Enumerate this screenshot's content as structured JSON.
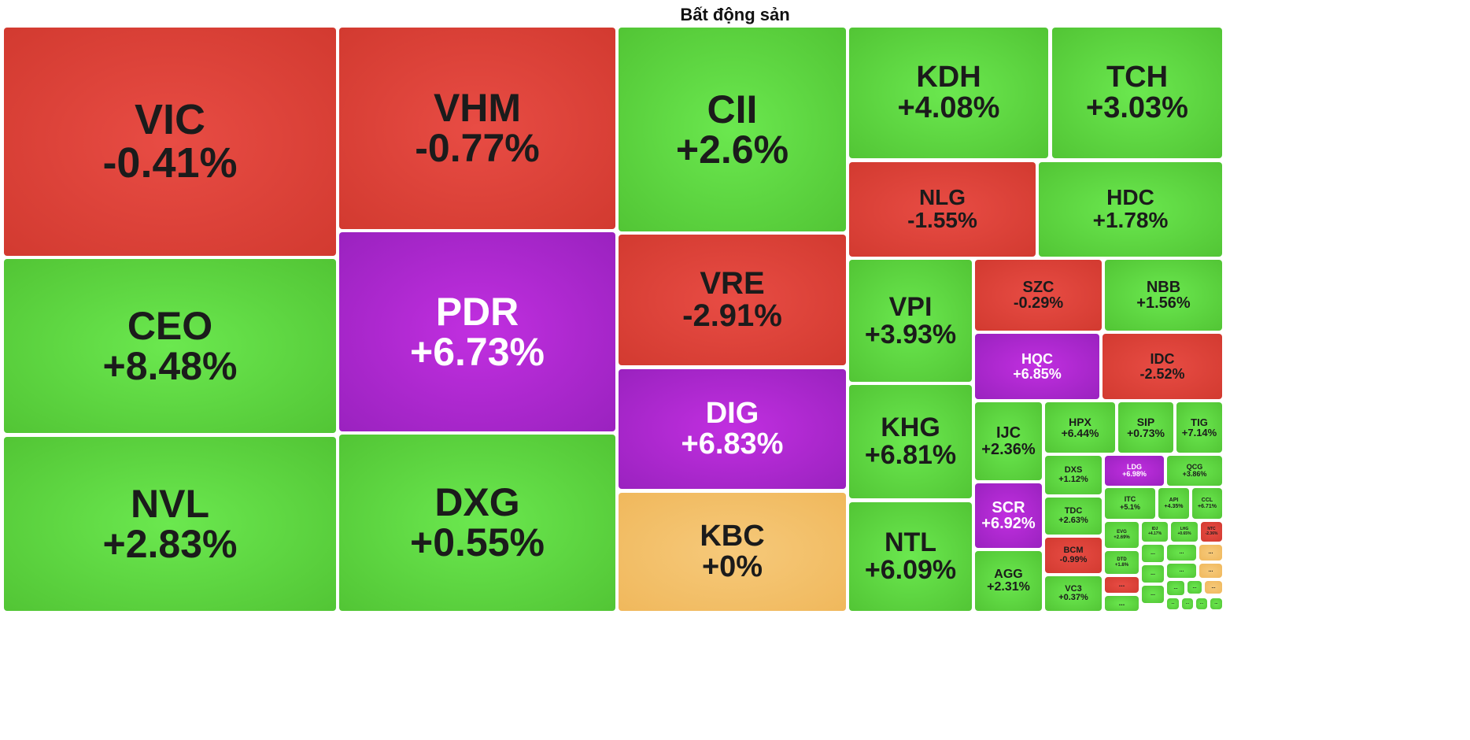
{
  "title": "Bất động sản",
  "colors": {
    "up": "#5bd13e",
    "down": "#de4239",
    "ceiling": "#ad28d0",
    "reference": "#f3c06a"
  },
  "chart_data": {
    "type": "treemap",
    "tiles": [
      {
        "ticker": "VIC",
        "change": "-0.41%",
        "status": "down"
      },
      {
        "ticker": "VHM",
        "change": "-0.77%",
        "status": "down"
      },
      {
        "ticker": "CII",
        "change": "+2.6%",
        "status": "up"
      },
      {
        "ticker": "KDH",
        "change": "+4.08%",
        "status": "up"
      },
      {
        "ticker": "TCH",
        "change": "+3.03%",
        "status": "up"
      },
      {
        "ticker": "NLG",
        "change": "-1.55%",
        "status": "down"
      },
      {
        "ticker": "HDC",
        "change": "+1.78%",
        "status": "up"
      },
      {
        "ticker": "CEO",
        "change": "+8.48%",
        "status": "up"
      },
      {
        "ticker": "PDR",
        "change": "+6.73%",
        "status": "ceil"
      },
      {
        "ticker": "VRE",
        "change": "-2.91%",
        "status": "down"
      },
      {
        "ticker": "VPI",
        "change": "+3.93%",
        "status": "up"
      },
      {
        "ticker": "SZC",
        "change": "-0.29%",
        "status": "down"
      },
      {
        "ticker": "NBB",
        "change": "+1.56%",
        "status": "up"
      },
      {
        "ticker": "HQC",
        "change": "+6.85%",
        "status": "ceil"
      },
      {
        "ticker": "IDC",
        "change": "-2.52%",
        "status": "down"
      },
      {
        "ticker": "DIG",
        "change": "+6.83%",
        "status": "ceil"
      },
      {
        "ticker": "KHG",
        "change": "+6.81%",
        "status": "up"
      },
      {
        "ticker": "NVL",
        "change": "+2.83%",
        "status": "up"
      },
      {
        "ticker": "DXG",
        "change": "+0.55%",
        "status": "up"
      },
      {
        "ticker": "KBC",
        "change": "+0%",
        "status": "ref"
      },
      {
        "ticker": "NTL",
        "change": "+6.09%",
        "status": "up"
      },
      {
        "ticker": "IJC",
        "change": "+2.36%",
        "status": "up"
      },
      {
        "ticker": "HPX",
        "change": "+6.44%",
        "status": "up"
      },
      {
        "ticker": "SIP",
        "change": "+0.73%",
        "status": "up"
      },
      {
        "ticker": "TIG",
        "change": "+7.14%",
        "status": "up"
      },
      {
        "ticker": "DXS",
        "change": "+1.12%",
        "status": "up"
      },
      {
        "ticker": "LDG",
        "change": "+6.98%",
        "status": "ceil"
      },
      {
        "ticker": "QCG",
        "change": "+3.86%",
        "status": "up"
      },
      {
        "ticker": "SCR",
        "change": "+6.92%",
        "status": "ceil"
      },
      {
        "ticker": "TDC",
        "change": "+2.63%",
        "status": "up"
      },
      {
        "ticker": "ITC",
        "change": "+5.1%",
        "status": "up"
      },
      {
        "ticker": "API",
        "change": "+4.35%",
        "status": "up"
      },
      {
        "ticker": "CCL",
        "change": "+6.71%",
        "status": "up"
      },
      {
        "ticker": "EVG",
        "change": "+2.69%",
        "status": "up"
      },
      {
        "ticker": "IDJ",
        "change": "+4.17%",
        "status": "up"
      },
      {
        "ticker": "LHG",
        "change": "+0.65%",
        "status": "up"
      },
      {
        "ticker": "NTC",
        "change": "-2.36%",
        "status": "down"
      },
      {
        "ticker": "BCM",
        "change": "-0.99%",
        "status": "down"
      },
      {
        "ticker": "DTD",
        "change": "+1.8%",
        "status": "up"
      },
      {
        "ticker": "AGG",
        "change": "+2.31%",
        "status": "up"
      },
      {
        "ticker": "VC3",
        "change": "+0.37%",
        "status": "up"
      },
      {
        "ticker": "...",
        "change": "",
        "status": "down"
      },
      {
        "ticker": "...",
        "change": "",
        "status": "up"
      },
      {
        "ticker": "...",
        "change": "",
        "status": "up"
      },
      {
        "ticker": "...",
        "change": "",
        "status": "up"
      },
      {
        "ticker": "...",
        "change": "",
        "status": "up"
      },
      {
        "ticker": "...",
        "change": "",
        "status": "up"
      },
      {
        "ticker": "...",
        "change": "",
        "status": "up"
      },
      {
        "ticker": "...",
        "change": "",
        "status": "ref"
      },
      {
        "ticker": "...",
        "change": "",
        "status": "ref"
      },
      {
        "ticker": "...",
        "change": "",
        "status": "up"
      },
      {
        "ticker": "...",
        "change": "",
        "status": "up"
      },
      {
        "ticker": "...",
        "change": "",
        "status": "ref"
      },
      {
        "ticker": "...",
        "change": "",
        "status": "up"
      },
      {
        "ticker": "...",
        "change": "",
        "status": "up"
      },
      {
        "ticker": "...",
        "change": "",
        "status": "up"
      },
      {
        "ticker": "...",
        "change": "",
        "status": "up"
      }
    ]
  }
}
